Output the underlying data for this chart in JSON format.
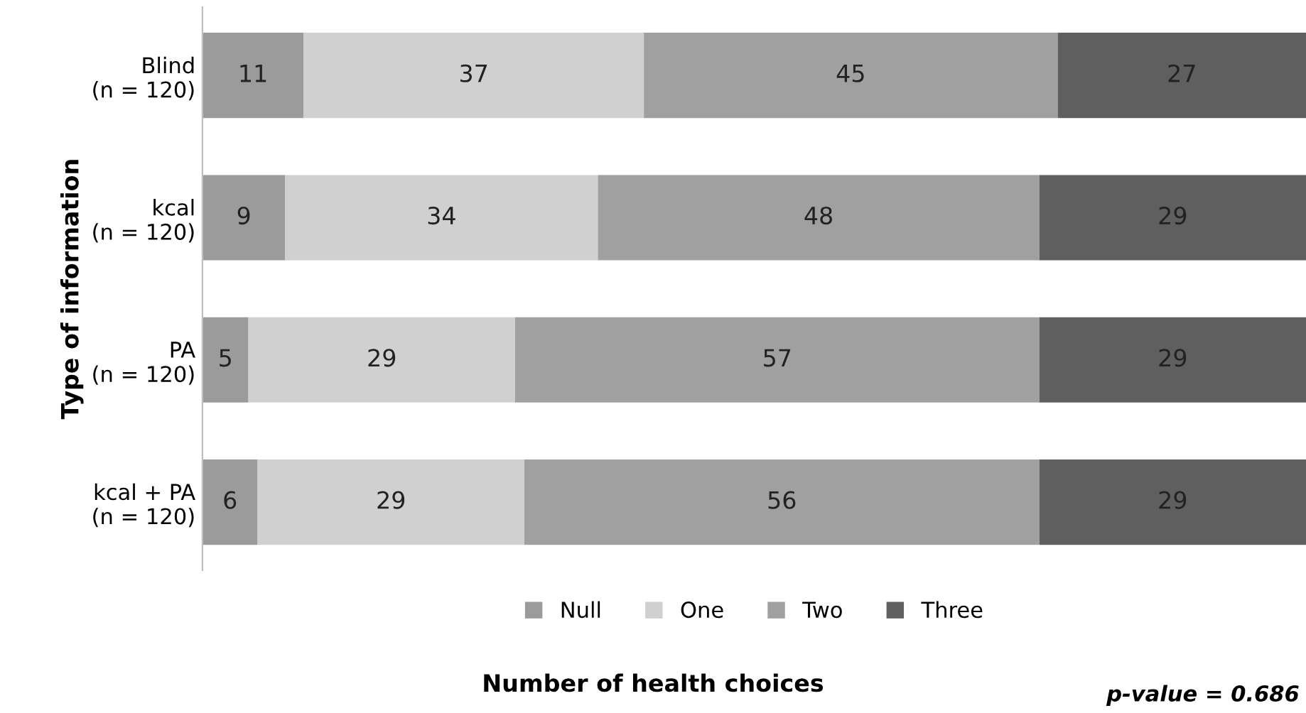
{
  "chart_data": {
    "type": "bar",
    "orientation": "horizontal",
    "stacked": true,
    "data_labels": true,
    "categories": [
      "Blind\n(n = 120)",
      "kcal\n(n = 120)",
      "PA\n(n = 120)",
      "kcal + PA\n(n = 120)"
    ],
    "series": [
      {
        "name": "Null",
        "color": "#9b9b9b",
        "values": [
          11,
          9,
          5,
          6
        ]
      },
      {
        "name": "One",
        "color": "#d0d0d0",
        "values": [
          37,
          34,
          29,
          29
        ]
      },
      {
        "name": "Two",
        "color": "#a0a0a0",
        "values": [
          45,
          48,
          57,
          56
        ]
      },
      {
        "name": "Three",
        "color": "#5f5f5f",
        "values": [
          27,
          29,
          29,
          29
        ]
      }
    ],
    "xlabel": "Number of health choices",
    "ylabel": "Type of information",
    "legend": "bottom",
    "grid": false,
    "annotations": [
      "p-value = 0.686"
    ]
  }
}
